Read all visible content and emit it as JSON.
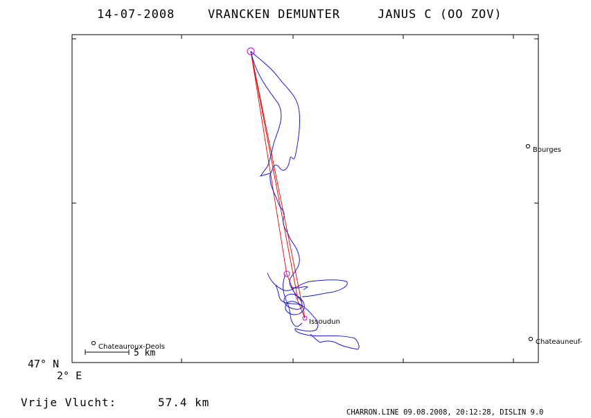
{
  "header": {
    "date": "14-07-2008",
    "pilot": "VRANCKEN DEMUNTER",
    "glider": "JANUS C (OO ZOV)"
  },
  "axes": {
    "lat_label": "47° N",
    "lon_label": "2° E"
  },
  "places": [
    {
      "name": "Bourges"
    },
    {
      "name": "Chateauroux-Deols"
    },
    {
      "name": "Issoudun"
    },
    {
      "name": "Chateauneuf-"
    }
  ],
  "scale_bar": {
    "label": "5 km"
  },
  "footer": {
    "free_flight_label": "Vrije Vlucht:",
    "free_flight_value": "57.4 km",
    "software_credit": "CHARRON.LINE 09.08.2008, 20:12:28, DISLIN 9.0"
  },
  "colors": {
    "track": "#1a1acc",
    "task_line": "#dd0000",
    "turnpoint": "#cc00cc",
    "frame": "#000000"
  }
}
